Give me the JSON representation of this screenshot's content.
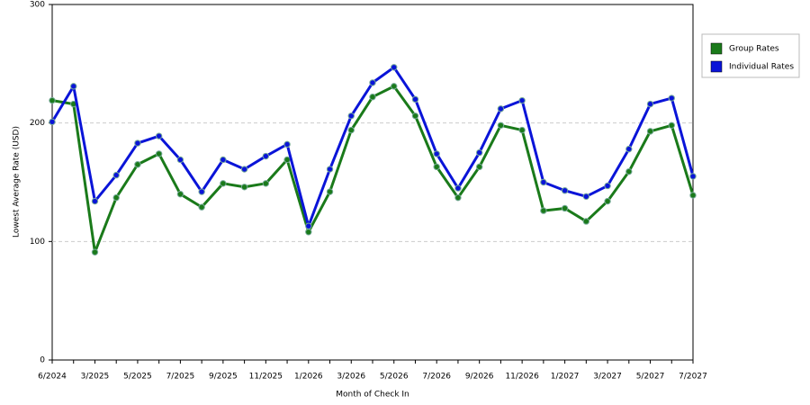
{
  "chart_data": {
    "type": "line",
    "x_label": "Month of Check In",
    "y_label": "Lowest Average Rate (USD)",
    "categories": [
      "6/2024",
      null,
      "3/2025",
      null,
      "5/2025",
      null,
      "7/2025",
      null,
      "9/2025",
      null,
      "11/2025",
      null,
      "1/2026",
      null,
      "3/2026",
      null,
      "5/2026",
      null,
      "7/2026",
      null,
      "9/2026",
      null,
      "11/2026",
      null,
      "1/2027",
      null,
      "3/2027",
      null,
      "5/2027",
      null,
      "7/2027"
    ],
    "series": [
      {
        "name": "Group Rates",
        "color": "#1a7a1a",
        "values": [
          219,
          216,
          91,
          137,
          165,
          174,
          140,
          129,
          149,
          146,
          149,
          169,
          108,
          142,
          194,
          222,
          231,
          206,
          163,
          137,
          163,
          198,
          194,
          126,
          128,
          117,
          134,
          159,
          193,
          198,
          139
        ]
      },
      {
        "name": "Individual Rates",
        "color": "#0a14d8",
        "values": [
          201,
          231,
          134,
          156,
          183,
          189,
          169,
          142,
          169,
          161,
          172,
          182,
          113,
          161,
          206,
          234,
          247,
          220,
          174,
          145,
          175,
          212,
          219,
          150,
          143,
          138,
          147,
          178,
          216,
          221,
          155
        ]
      }
    ],
    "ylim": [
      0,
      300
    ],
    "yticks": [
      0,
      100,
      200,
      300
    ],
    "grid": true,
    "legend": "right"
  }
}
